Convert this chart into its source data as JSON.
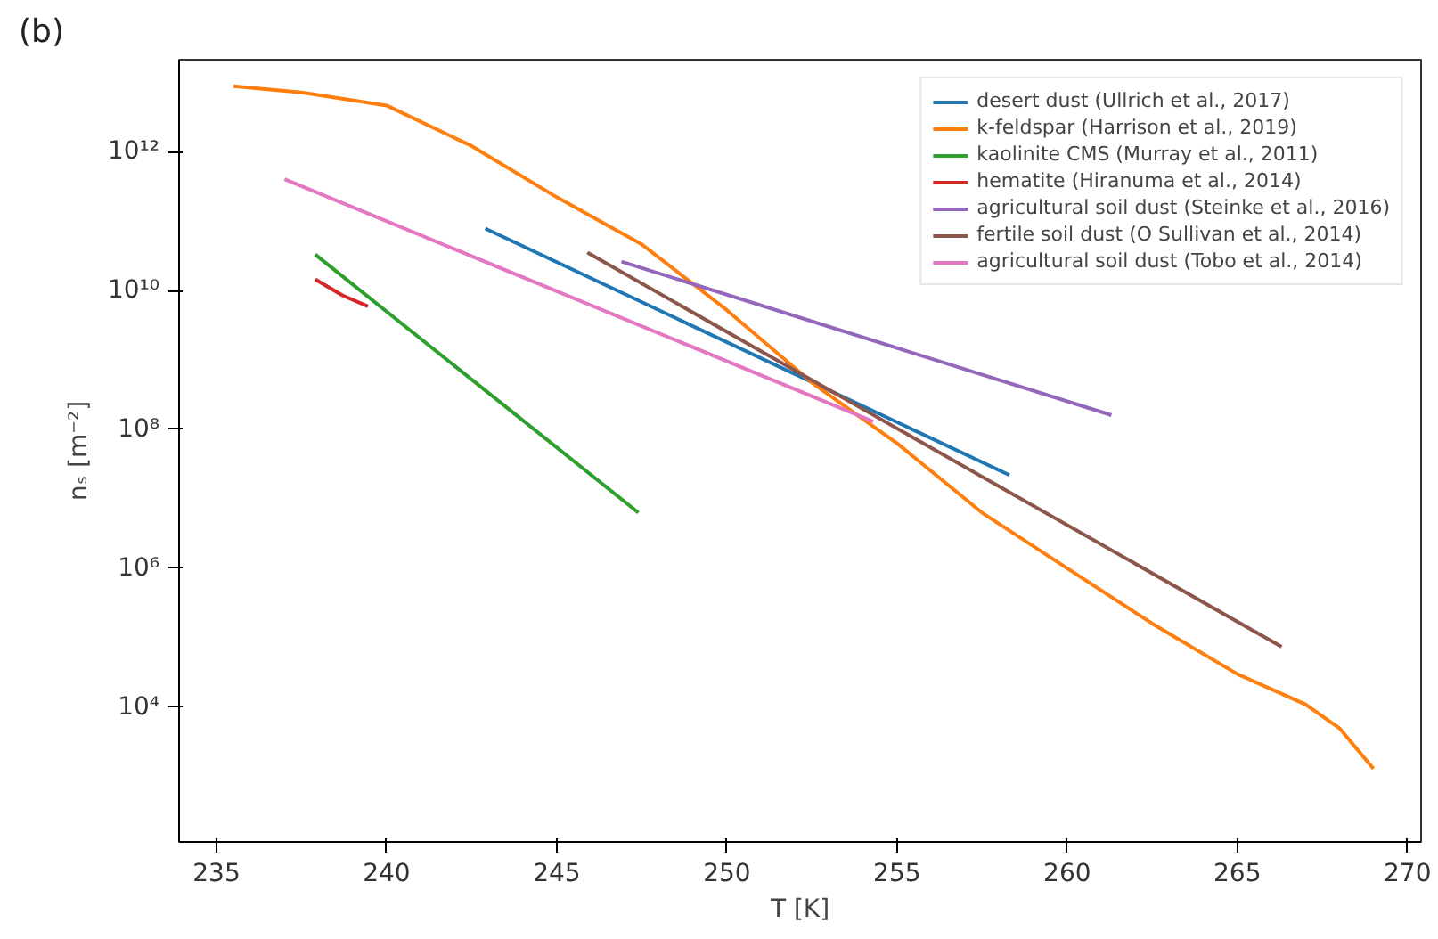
{
  "chart_data": {
    "type": "line",
    "xlabel": "T [K]",
    "ylabel": "nₛ [m⁻²]",
    "log": "y",
    "grid": false,
    "legend": "top right",
    "marker": "none",
    "line_style": "solid",
    "xlim": [
      233.9,
      270.4
    ],
    "ylim": [
      115,
      21000000000000.0
    ],
    "xticks": [
      235,
      240,
      245,
      250,
      255,
      260,
      265,
      270
    ],
    "yticks": [
      {
        "value": 10000,
        "label": "10⁴"
      },
      {
        "value": 1000000,
        "label": "10⁶"
      },
      {
        "value": 100000000,
        "label": "10⁸"
      },
      {
        "value": 10000000000,
        "label": "10¹⁰"
      },
      {
        "value": 1000000000000,
        "label": "10¹²"
      }
    ],
    "annotations": [
      "(b)"
    ],
    "series": [
      {
        "name": "desert dust (Ullrich et al., 2017)",
        "color": "#1f77b4",
        "x": [
          242.9,
          258.3
        ],
        "values": [
          78000000000.0,
          22000000.0
        ]
      },
      {
        "name": "k-feldspar (Harrison et al., 2019)",
        "color": "#ff7f0e",
        "x": [
          235.5,
          237.5,
          240,
          242.5,
          245,
          247.5,
          250,
          252.5,
          255,
          257.5,
          260,
          262.5,
          265,
          267,
          268,
          269
        ],
        "values": [
          8700000000000.0,
          7100000000000.0,
          4600000000000.0,
          1200000000000.0,
          220000000000.0,
          46000000000.0,
          5200000000.0,
          470000000.0,
          63000000.0,
          6300000.0,
          1000000.0,
          160000.0,
          30000.0,
          11000.0,
          5000.0,
          1300.0
        ]
      },
      {
        "name": "kaolinite CMS (Murray et al., 2011)",
        "color": "#2ca02c",
        "x": [
          237.9,
          247.4
        ],
        "values": [
          33000000000.0,
          6300000.0
        ]
      },
      {
        "name": "hematite (Hiranuma et al., 2014)",
        "color": "#d62728",
        "x": [
          237.9,
          238.7,
          239.45
        ],
        "values": [
          14500000000.0,
          8500000000.0,
          5900000000.0
        ]
      },
      {
        "name": "agricultural soil dust (Steinke et al., 2016)",
        "color": "#9467bd",
        "x": [
          246.9,
          261.3
        ],
        "values": [
          26000000000.0,
          160000000.0
        ]
      },
      {
        "name": "fertile soil dust (O Sullivan et al., 2014)",
        "color": "#8c564b",
        "x": [
          245.9,
          266.3
        ],
        "values": [
          35000000000.0,
          74000.0
        ]
      },
      {
        "name": "agricultural soil dust (Tobo et al., 2014)",
        "color": "#e377c2",
        "x": [
          237.0,
          254.3
        ],
        "values": [
          400000000000.0,
          130000000.0
        ]
      }
    ]
  }
}
